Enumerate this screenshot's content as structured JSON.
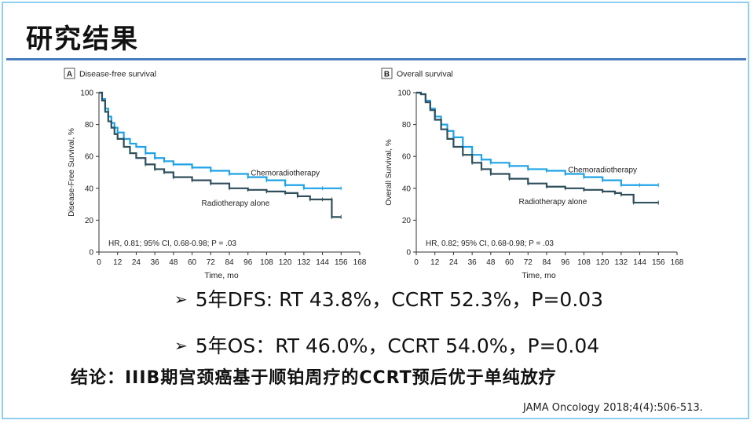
{
  "page_title": "研究结果",
  "chart_data": [
    {
      "type": "line",
      "panel_label": "A",
      "title": "Disease-free survival",
      "xlabel": "Time, mo",
      "ylabel": "Disease-Free Survival, %",
      "xlim": [
        0,
        168
      ],
      "ylim": [
        0,
        100
      ],
      "xticks": [
        0,
        12,
        24,
        36,
        48,
        60,
        72,
        84,
        96,
        108,
        120,
        132,
        144,
        156,
        168
      ],
      "yticks": [
        0,
        20,
        40,
        60,
        80,
        100
      ],
      "annotation": "HR, 0.81; 95% CI, 0.68-0.98; P = .03",
      "series": [
        {
          "name": "Chemoradiotherapy",
          "color": "#1fa3e6",
          "points": [
            [
              0,
              100
            ],
            [
              2,
              96
            ],
            [
              4,
              90
            ],
            [
              6,
              85
            ],
            [
              8,
              81
            ],
            [
              10,
              78
            ],
            [
              12,
              75
            ],
            [
              16,
              71
            ],
            [
              20,
              68
            ],
            [
              24,
              66
            ],
            [
              30,
              62
            ],
            [
              36,
              59
            ],
            [
              42,
              57
            ],
            [
              48,
              55
            ],
            [
              60,
              53
            ],
            [
              72,
              51
            ],
            [
              84,
              49
            ],
            [
              96,
              47
            ],
            [
              108,
              45
            ],
            [
              120,
              42
            ],
            [
              132,
              40
            ],
            [
              144,
              40
            ],
            [
              156,
              40
            ]
          ]
        },
        {
          "name": "Radiotherapy alone",
          "color": "#2f4f5c",
          "points": [
            [
              0,
              100
            ],
            [
              2,
              95
            ],
            [
              4,
              88
            ],
            [
              6,
              82
            ],
            [
              8,
              78
            ],
            [
              10,
              74
            ],
            [
              12,
              71
            ],
            [
              16,
              66
            ],
            [
              20,
              62
            ],
            [
              24,
              59
            ],
            [
              30,
              55
            ],
            [
              36,
              52
            ],
            [
              42,
              50
            ],
            [
              48,
              47
            ],
            [
              60,
              45
            ],
            [
              72,
              43
            ],
            [
              84,
              40
            ],
            [
              96,
              39
            ],
            [
              108,
              38
            ],
            [
              120,
              37
            ],
            [
              128,
              35
            ],
            [
              136,
              33
            ],
            [
              144,
              33
            ],
            [
              150,
              33
            ],
            [
              150,
              22
            ],
            [
              156,
              22
            ]
          ]
        }
      ]
    },
    {
      "type": "line",
      "panel_label": "B",
      "title": "Overall survival",
      "xlabel": "Time, mo",
      "ylabel": "Overall Survival, %",
      "xlim": [
        0,
        168
      ],
      "ylim": [
        0,
        100
      ],
      "xticks": [
        0,
        12,
        24,
        36,
        48,
        60,
        72,
        84,
        96,
        108,
        120,
        132,
        144,
        156,
        168
      ],
      "yticks": [
        0,
        20,
        40,
        60,
        80,
        100
      ],
      "annotation": "HR, 0.82; 95% CI, 0.68-0.98; P = .03",
      "series": [
        {
          "name": "Chemoradiotherapy",
          "color": "#1fa3e6",
          "points": [
            [
              0,
              100
            ],
            [
              3,
              99
            ],
            [
              6,
              95
            ],
            [
              9,
              90
            ],
            [
              12,
              85
            ],
            [
              16,
              80
            ],
            [
              20,
              76
            ],
            [
              24,
              72
            ],
            [
              30,
              66
            ],
            [
              36,
              61
            ],
            [
              42,
              58
            ],
            [
              48,
              56
            ],
            [
              60,
              54
            ],
            [
              72,
              52
            ],
            [
              84,
              51
            ],
            [
              96,
              49
            ],
            [
              108,
              47
            ],
            [
              120,
              45
            ],
            [
              132,
              42
            ],
            [
              144,
              42
            ],
            [
              156,
              42
            ]
          ]
        },
        {
          "name": "Radiotherapy alone",
          "color": "#2f4f5c",
          "points": [
            [
              0,
              100
            ],
            [
              3,
              99
            ],
            [
              6,
              94
            ],
            [
              9,
              89
            ],
            [
              12,
              83
            ],
            [
              16,
              77
            ],
            [
              20,
              71
            ],
            [
              24,
              66
            ],
            [
              30,
              61
            ],
            [
              36,
              56
            ],
            [
              42,
              52
            ],
            [
              48,
              49
            ],
            [
              60,
              46
            ],
            [
              72,
              43
            ],
            [
              84,
              41
            ],
            [
              96,
              40
            ],
            [
              108,
              39
            ],
            [
              120,
              38
            ],
            [
              128,
              37
            ],
            [
              132,
              36
            ],
            [
              140,
              35
            ],
            [
              140,
              31
            ],
            [
              156,
              31
            ]
          ]
        }
      ]
    }
  ],
  "bullets": [
    "5年DFS: RT 43.8%，CCRT 52.3%，P=0.03",
    "5年OS：RT 46.0%，CCRT 54.0%，P=0.04"
  ],
  "bullet_marker": "➢",
  "conclusion": "结论：IIIB期宫颈癌基于顺铂周疗的CCRT预后优于单纯放疗",
  "citation": "JAMA Oncology 2018;4(4):506-513."
}
